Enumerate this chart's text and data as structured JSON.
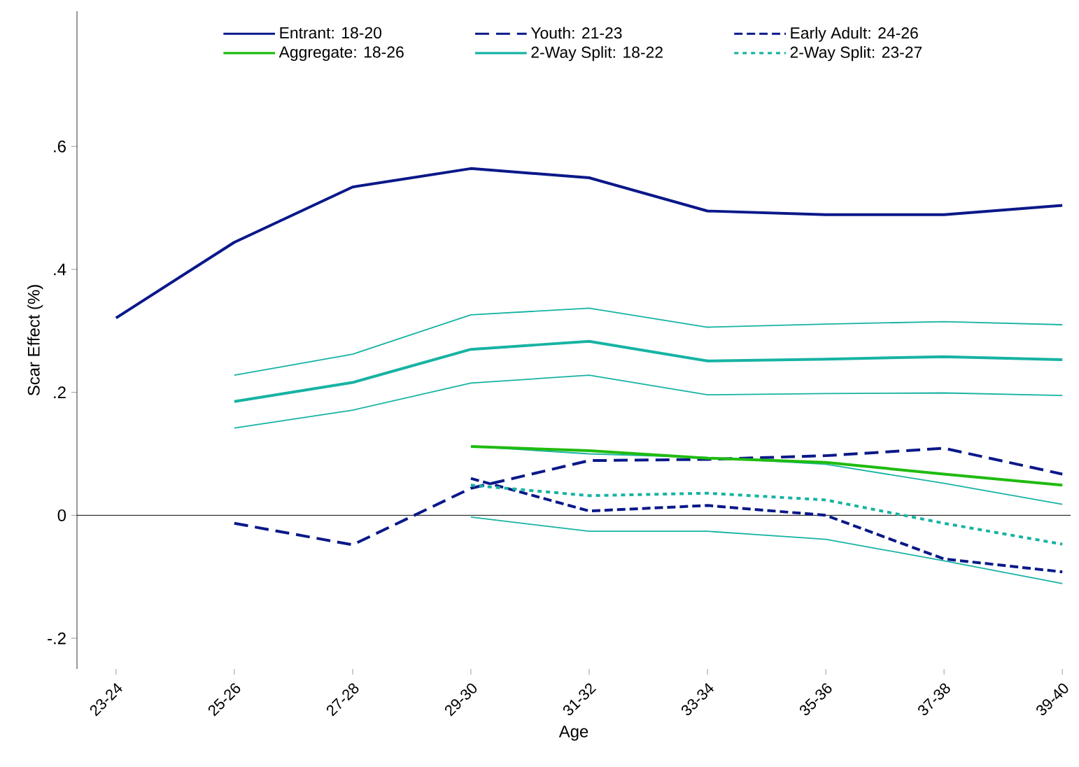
{
  "chart_data": {
    "type": "line",
    "xlabel": "Age",
    "ylabel": "Scar Effect (%)",
    "categories": [
      "23-24",
      "25-26",
      "27-28",
      "29-30",
      "31-32",
      "33-34",
      "35-36",
      "37-38",
      "39-40"
    ],
    "ylim": [
      -0.25,
      0.82
    ],
    "yticks": [
      {
        "value": -0.2,
        "label": "-.2"
      },
      {
        "value": 0,
        "label": "0"
      },
      {
        "value": 0.2,
        "label": ".2"
      },
      {
        "value": 0.4,
        "label": ".4"
      },
      {
        "value": 0.6,
        "label": ".6"
      }
    ],
    "grid": false,
    "legend": "top",
    "marker": "none",
    "ref_lines": [
      {
        "axis": "y",
        "value": 0,
        "color": "#000000"
      }
    ],
    "series": [
      {
        "name": "Entrant: 18-20",
        "color": "#0a1889",
        "line_style": "solid",
        "values": [
          0.321,
          0.444,
          0.534,
          0.564,
          0.549,
          0.495,
          0.489,
          0.489,
          0.504
        ]
      },
      {
        "name": "Youth: 21-23",
        "color": "#0a1889",
        "line_style": "dashed",
        "values": [
          null,
          -0.013,
          -0.048,
          0.044,
          0.089,
          0.091,
          0.097,
          0.109,
          0.067
        ]
      },
      {
        "name": "Early Adult: 24-26",
        "color": "#0a1889",
        "line_style": "densely dashed",
        "values": [
          null,
          null,
          null,
          0.06,
          0.007,
          0.016,
          0.0,
          -0.071,
          -0.092
        ]
      },
      {
        "name": "Aggregate: 18-26",
        "color": "#1fbb10",
        "line_style": "solid",
        "values": [
          null,
          null,
          null,
          0.112,
          0.105,
          0.093,
          0.086,
          0.067,
          0.049
        ]
      },
      {
        "name": "2-Way Split: 18-22",
        "color": "#17b3a3",
        "line_style": "solid",
        "values": [
          null,
          0.185,
          0.216,
          0.27,
          0.283,
          0.251,
          0.254,
          0.258,
          0.253
        ]
      },
      {
        "name": "2-Way Split: 23-27",
        "color": "#17b3a3",
        "line_style": "dotted",
        "values": [
          null,
          null,
          null,
          0.049,
          0.032,
          0.036,
          0.025,
          -0.013,
          -0.047
        ]
      },
      {
        "color": "#17b3a3",
        "line_style": "solid",
        "values": [
          null,
          0.142,
          0.171,
          0.215,
          0.228,
          0.196,
          0.198,
          0.199,
          0.195
        ]
      },
      {
        "color": "#17b3a3",
        "line_style": "solid",
        "values": [
          null,
          0.228,
          0.262,
          0.326,
          0.337,
          0.306,
          0.311,
          0.315,
          0.31
        ]
      },
      {
        "color": "#17b3a3",
        "line_style": "solid",
        "values": [
          null,
          null,
          null,
          -0.003,
          -0.026,
          -0.026,
          -0.039,
          -0.074,
          -0.111
        ]
      },
      {
        "color": "#17b3a3",
        "line_style": "solid",
        "values": [
          null,
          null,
          null,
          0.112,
          0.1,
          0.094,
          0.083,
          0.052,
          0.018
        ]
      }
    ]
  }
}
